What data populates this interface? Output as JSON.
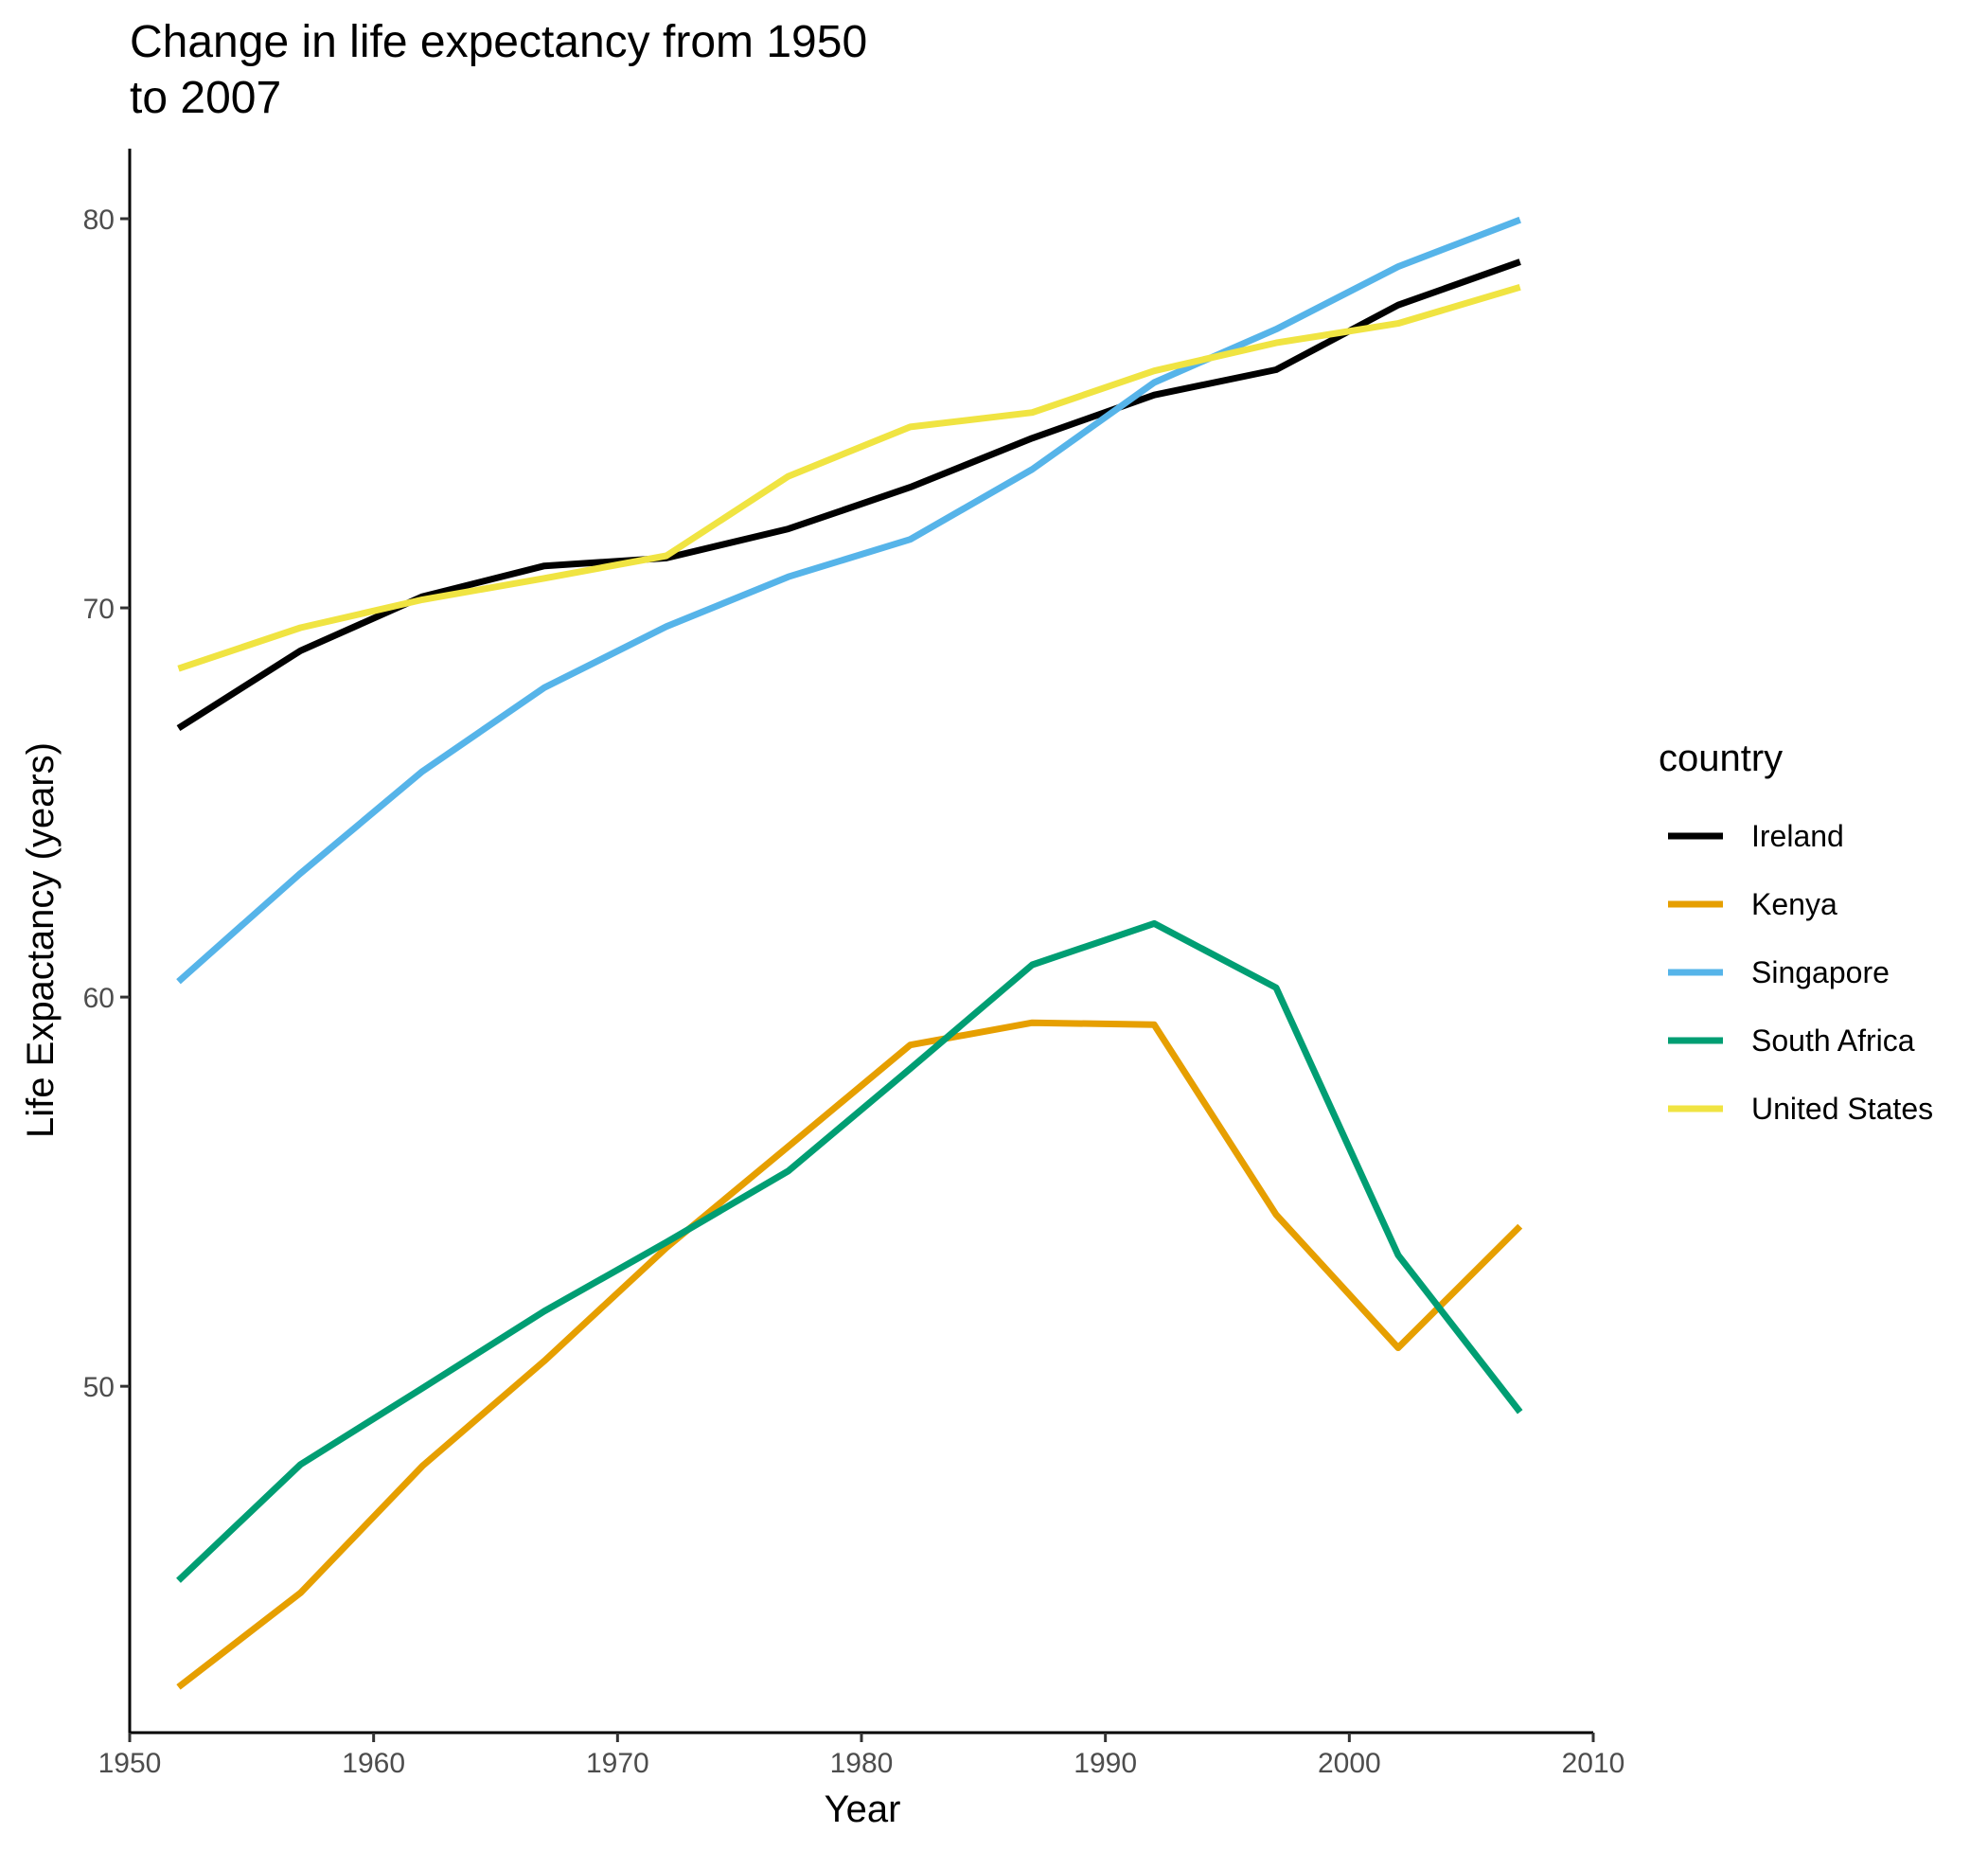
{
  "chart_data": {
    "type": "line",
    "title": [
      "Change in life expectancy from 1950",
      "to 2007"
    ],
    "xlabel": "Year",
    "ylabel": "Life Expactancy (years)",
    "xlim": [
      1950,
      2010
    ],
    "ylim": [
      41.1,
      81.8
    ],
    "xticks": [
      1950,
      1960,
      1970,
      1980,
      1990,
      2000,
      2010
    ],
    "yticks": [
      50,
      60,
      70,
      80
    ],
    "grid": false,
    "legend": {
      "title": "country",
      "position": "right"
    },
    "x": [
      1952,
      1957,
      1962,
      1967,
      1972,
      1977,
      1982,
      1987,
      1992,
      1997,
      2002,
      2007
    ],
    "series": [
      {
        "name": "Ireland",
        "color": "#000000",
        "values": [
          66.91,
          68.9,
          70.29,
          71.08,
          71.28,
          72.03,
          73.1,
          74.36,
          75.47,
          76.12,
          77.78,
          78.89
        ]
      },
      {
        "name": "Kenya",
        "color": "#E69F00",
        "values": [
          42.27,
          44.69,
          47.95,
          50.65,
          53.56,
          56.16,
          58.77,
          59.34,
          59.29,
          54.41,
          50.99,
          54.11
        ]
      },
      {
        "name": "Singapore",
        "color": "#56B4E9",
        "values": [
          60.4,
          63.18,
          65.8,
          67.95,
          69.52,
          70.8,
          71.76,
          73.56,
          75.79,
          77.16,
          78.77,
          79.97
        ]
      },
      {
        "name": "South Africa",
        "color": "#009E73",
        "values": [
          45.01,
          47.99,
          49.95,
          51.93,
          53.7,
          55.53,
          58.16,
          60.83,
          61.89,
          60.24,
          53.37,
          49.34
        ]
      },
      {
        "name": "United States",
        "color": "#F0E442",
        "values": [
          68.44,
          69.49,
          70.21,
          70.76,
          71.34,
          73.38,
          74.65,
          75.02,
          76.09,
          76.81,
          77.31,
          78.24
        ]
      }
    ]
  }
}
